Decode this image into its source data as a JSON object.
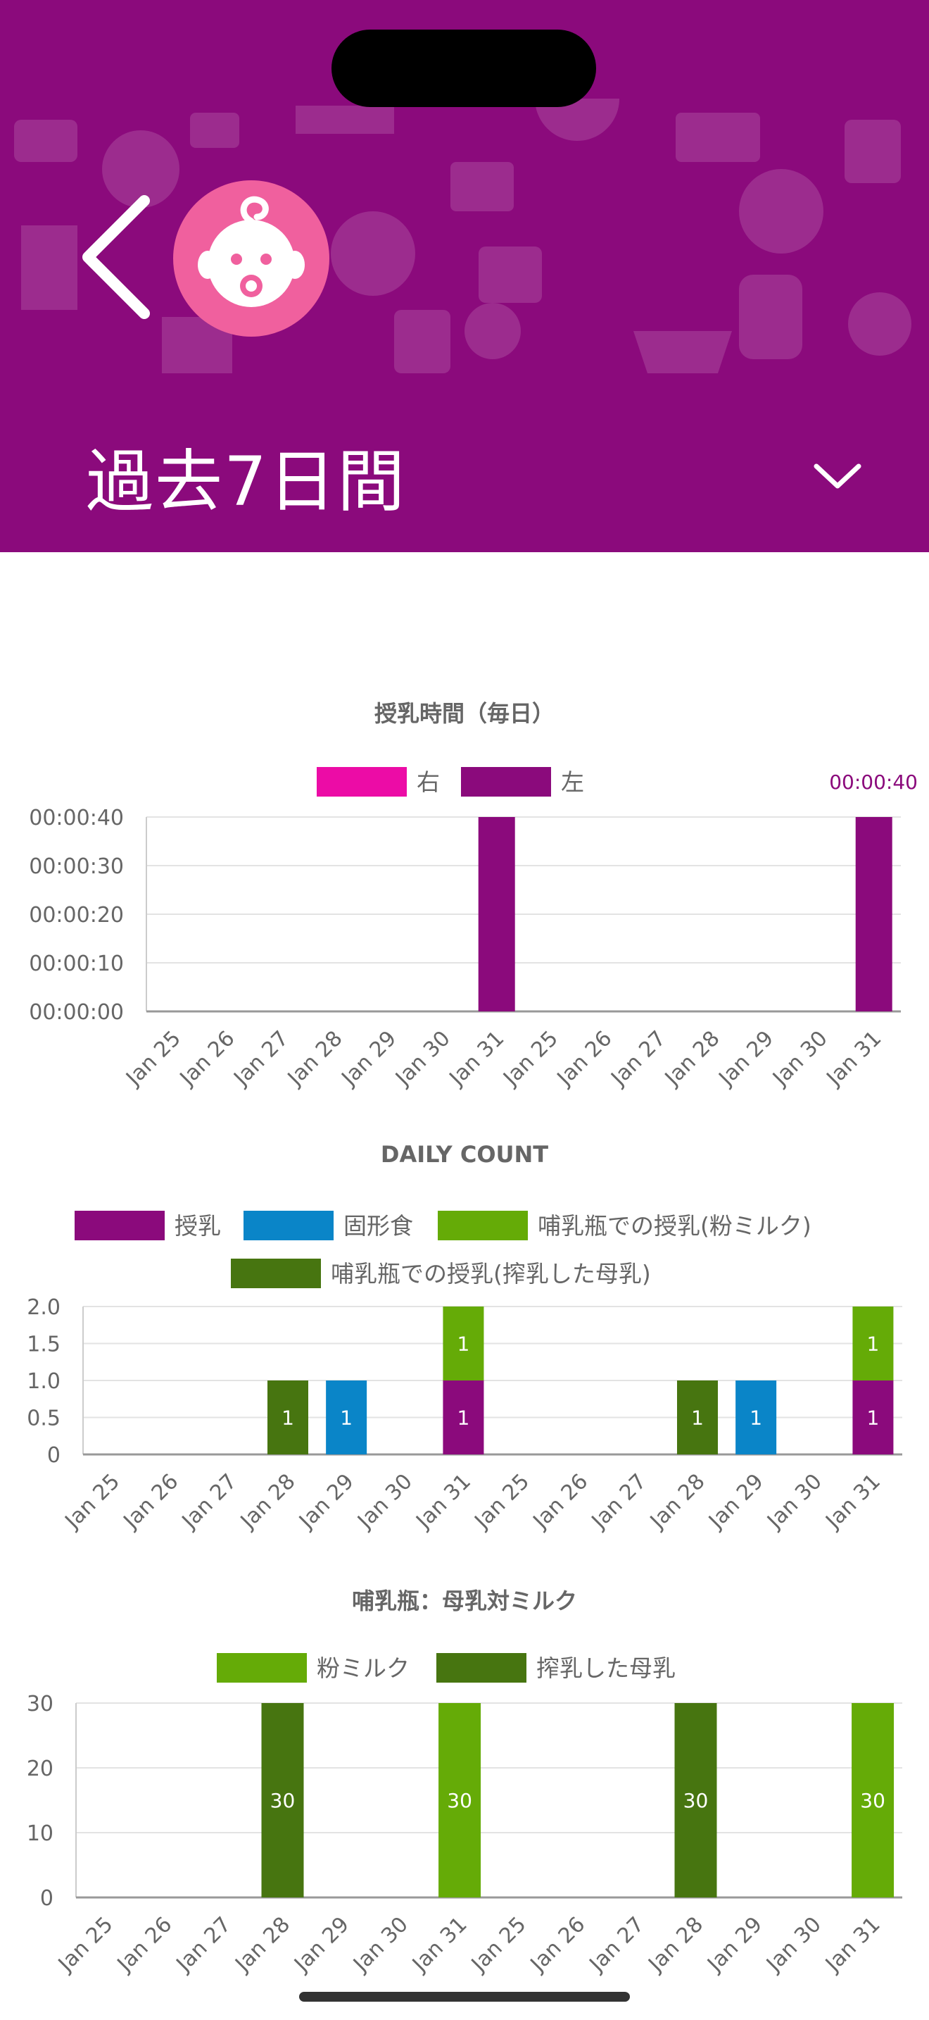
{
  "header": {
    "background_color": "#8b0a7c",
    "back_icon": "chevron-left-icon",
    "avatar_icon": "baby-face-icon",
    "avatar_color": "#f0609e",
    "period_label": "過去7日間",
    "dropdown_icon": "chevron-down-icon"
  },
  "chart_data": [
    {
      "type": "bar",
      "title": "授乳時間（毎日）",
      "categories": [
        "Jan 25",
        "Jan 26",
        "Jan 27",
        "Jan 28",
        "Jan 29",
        "Jan 30",
        "Jan 31",
        "Jan 25",
        "Jan 26",
        "Jan 27",
        "Jan 28",
        "Jan 29",
        "Jan 30",
        "Jan 31"
      ],
      "series": [
        {
          "name": "右",
          "color": "#ec0ca6",
          "values": [
            0,
            0,
            0,
            0,
            0,
            0,
            0,
            0,
            0,
            0,
            0,
            0,
            0,
            0
          ]
        },
        {
          "name": "左",
          "color": "#8b0a7c",
          "values": [
            0,
            0,
            0,
            0,
            0,
            0,
            40,
            0,
            0,
            0,
            0,
            0,
            0,
            40
          ]
        }
      ],
      "y_ticks": [
        "00:00:00",
        "00:00:10",
        "00:00:20",
        "00:00:30",
        "00:00:40"
      ],
      "ylim": [
        0,
        40
      ],
      "stacked": false,
      "grid": true,
      "legend": "top",
      "annotations": [
        "00:00:40"
      ]
    },
    {
      "type": "bar",
      "title": "DAILY COUNT",
      "categories": [
        "Jan 25",
        "Jan 26",
        "Jan 27",
        "Jan 28",
        "Jan 29",
        "Jan 30",
        "Jan 31",
        "Jan 25",
        "Jan 26",
        "Jan 27",
        "Jan 28",
        "Jan 29",
        "Jan 30",
        "Jan 31"
      ],
      "series": [
        {
          "name": "授乳",
          "color": "#8b0a7c",
          "values": [
            0,
            0,
            0,
            0,
            0,
            0,
            1,
            0,
            0,
            0,
            0,
            0,
            0,
            1
          ]
        },
        {
          "name": "固形食",
          "color": "#0a85c8",
          "values": [
            0,
            0,
            0,
            0,
            1,
            0,
            0,
            0,
            0,
            0,
            0,
            1,
            0,
            0
          ]
        },
        {
          "name": "哺乳瓶での授乳(粉ミルク)",
          "color": "#65ab07",
          "values": [
            0,
            0,
            0,
            0,
            0,
            0,
            1,
            0,
            0,
            0,
            0,
            0,
            0,
            1
          ]
        },
        {
          "name": "哺乳瓶での授乳(搾乳した母乳)",
          "color": "#477510",
          "values": [
            0,
            0,
            0,
            1,
            0,
            0,
            0,
            0,
            0,
            0,
            1,
            0,
            0,
            0
          ]
        }
      ],
      "y_ticks": [
        "0",
        "0.5",
        "1.0",
        "1.5",
        "2.0"
      ],
      "ylim": [
        0,
        2
      ],
      "stacked": true,
      "grid": true,
      "legend": "top"
    },
    {
      "type": "bar",
      "title": "哺乳瓶：母乳対ミルク",
      "categories": [
        "Jan 25",
        "Jan 26",
        "Jan 27",
        "Jan 28",
        "Jan 29",
        "Jan 30",
        "Jan 31",
        "Jan 25",
        "Jan 26",
        "Jan 27",
        "Jan 28",
        "Jan 29",
        "Jan 30",
        "Jan 31"
      ],
      "series": [
        {
          "name": "粉ミルク",
          "color": "#65ab07",
          "values": [
            0,
            0,
            0,
            0,
            0,
            0,
            30,
            0,
            0,
            0,
            0,
            0,
            0,
            30
          ]
        },
        {
          "name": "搾乳した母乳",
          "color": "#477510",
          "values": [
            0,
            0,
            0,
            30,
            0,
            0,
            0,
            0,
            0,
            0,
            30,
            0,
            0,
            0
          ]
        }
      ],
      "y_ticks": [
        "0",
        "10",
        "20",
        "30"
      ],
      "ylim": [
        0,
        30
      ],
      "stacked": true,
      "grid": true,
      "legend": "top"
    }
  ]
}
